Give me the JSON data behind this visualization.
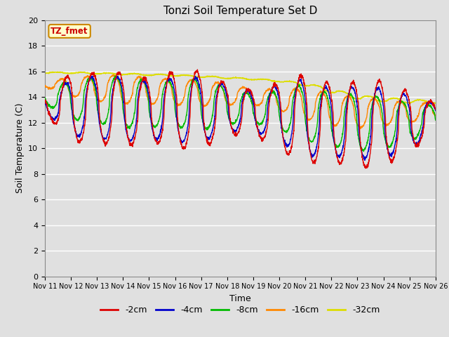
{
  "title": "Tonzi Soil Temperature Set D",
  "xlabel": "Time",
  "ylabel": "Soil Temperature (C)",
  "annotation": "TZ_fmet",
  "ylim": [
    0,
    20
  ],
  "yticks": [
    0,
    2,
    4,
    6,
    8,
    10,
    12,
    14,
    16,
    18,
    20
  ],
  "xtick_labels": [
    "Nov 11",
    "Nov 12",
    "Nov 13",
    "Nov 14",
    "Nov 15",
    "Nov 16",
    "Nov 17",
    "Nov 18",
    "Nov 19",
    "Nov 20",
    "Nov 21",
    "Nov 22",
    "Nov 23",
    "Nov 24",
    "Nov 25",
    "Nov 26"
  ],
  "series_colors": [
    "#dd0000",
    "#0000cc",
    "#00bb00",
    "#ff8800",
    "#dddd00"
  ],
  "series_labels": [
    "-2cm",
    "-4cm",
    "-8cm",
    "-16cm",
    "-32cm"
  ],
  "background_color": "#e0e0e0",
  "grid_color": "#ffffff",
  "annotation_bg": "#ffffcc",
  "annotation_border": "#cc8800",
  "n_days": 15,
  "n_per_day": 144
}
